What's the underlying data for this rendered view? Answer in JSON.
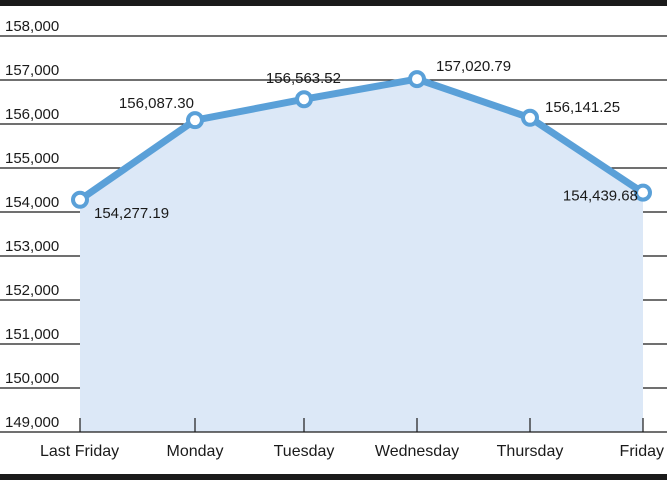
{
  "chart_data": {
    "type": "area",
    "title": "",
    "xlabel": "",
    "ylabel": "",
    "categories": [
      "Last Friday",
      "Monday",
      "Tuesday",
      "Wednesday",
      "Thursday",
      "Friday"
    ],
    "series": [
      {
        "values": [
          154277.19,
          156087.3,
          156563.52,
          157020.79,
          156141.25,
          154439.68
        ],
        "labels": [
          "154,277.19",
          "156,087.30",
          "156,563.52",
          "157,020.79",
          "156,141.25",
          "154,439.68"
        ]
      }
    ],
    "ylim": [
      149000,
      158000
    ],
    "y_ticks": [
      149000,
      150000,
      151000,
      152000,
      153000,
      154000,
      155000,
      156000,
      157000,
      158000
    ],
    "y_tick_labels": [
      "149,000",
      "150,000",
      "151,000",
      "152,000",
      "153,000",
      "154,000",
      "155,000",
      "156,000",
      "157,000",
      "158,000"
    ],
    "grid": true,
    "legend": "none",
    "colors": {
      "line": "#5aa0d8",
      "area": "#dce8f7",
      "marker_fill": "#ffffff",
      "frame": "#1a1a1a",
      "grid": "#1a1a1a"
    }
  }
}
